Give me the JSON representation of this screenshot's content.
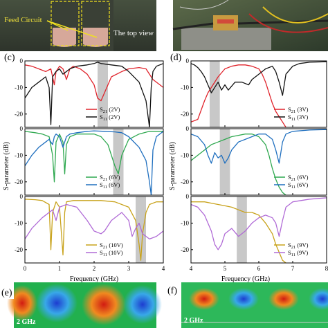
{
  "photos": {
    "left_feed_label": "Feed Circuit",
    "left_top_view_label": "The top view"
  },
  "panels": {
    "c": {
      "label": "(c)",
      "xlabel": "Frequency (GHz)",
      "ylabel": "S-parameter (dB)",
      "xticks": [
        "0",
        "1",
        "2",
        "3",
        "4"
      ],
      "yticks": [
        "0",
        "-10",
        "-20"
      ],
      "subplots": [
        {
          "legend": [
            {
              "name": "S21 (2V)",
              "color": "#e0232b"
            },
            {
              "name": "S11 (2V)",
              "color": "#111111"
            }
          ]
        },
        {
          "legend": [
            {
              "name": "S21 (6V)",
              "color": "#2ea84f"
            },
            {
              "name": "S11 (6V)",
              "color": "#1f6fbf"
            }
          ]
        },
        {
          "legend": [
            {
              "name": "S21 (10V)",
              "color": "#c8a21a"
            },
            {
              "name": "S11 (10V)",
              "color": "#b06ad6"
            }
          ]
        }
      ]
    },
    "d": {
      "label": "(d)",
      "xlabel": "Frequency (GHz)",
      "xticks": [
        "4",
        "5",
        "6",
        "7",
        "8"
      ],
      "yticks": [
        "0",
        "-10",
        "-20"
      ],
      "subplots": [
        {
          "legend": [
            {
              "name": "S21 (3V)",
              "color": "#e0232b"
            },
            {
              "name": "S11 (3V)",
              "color": "#111111"
            }
          ]
        },
        {
          "legend": [
            {
              "name": "S21 (6V)",
              "color": "#2ea84f"
            },
            {
              "name": "S11 (6V)",
              "color": "#1f6fbf"
            }
          ]
        },
        {
          "legend": [
            {
              "name": "S21 (9V)",
              "color": "#c8a21a"
            },
            {
              "name": "S11 (9V)",
              "color": "#b06ad6"
            }
          ]
        }
      ]
    },
    "e": {
      "label": "(e)",
      "freq_label": "2 GHz"
    },
    "f": {
      "label": "(f)",
      "freq_label": "2 GHz"
    }
  },
  "chart_data": [
    {
      "type": "line",
      "panel": "c-top",
      "xlim": [
        0,
        4
      ],
      "ylim": [
        -25,
        0
      ],
      "highlight_band": [
        2.1,
        2.4
      ],
      "series": [
        {
          "name": "S21 (2V)",
          "color": "#e0232b",
          "x": [
            0,
            0.2,
            0.4,
            0.6,
            0.75,
            0.85,
            0.9,
            1.0,
            1.1,
            1.2,
            1.3,
            1.4,
            1.6,
            1.8,
            2.0,
            2.1,
            2.2,
            2.3,
            2.5,
            2.8,
            3.0,
            3.3,
            3.5,
            3.7,
            4.0
          ],
          "y": [
            -1.5,
            -2,
            -3,
            -4,
            -3,
            -9,
            -4,
            -2,
            -3,
            -7,
            -3,
            -2,
            -3,
            -5,
            -9,
            -14,
            -15,
            -12,
            -6,
            -4,
            -3,
            -2.5,
            -3,
            -7,
            -10
          ]
        },
        {
          "name": "S11 (2V)",
          "color": "#111111",
          "x": [
            0,
            0.2,
            0.4,
            0.5,
            0.6,
            0.7,
            0.75,
            0.8,
            0.9,
            1.0,
            1.1,
            1.3,
            1.5,
            1.8,
            2.0,
            2.1,
            2.2,
            2.5,
            2.8,
            3.0,
            3.3,
            3.5,
            3.6,
            3.65,
            3.7,
            3.8,
            4.0
          ],
          "y": [
            -14,
            -10,
            -8,
            -7,
            -6,
            -10,
            -24,
            -6,
            -4,
            -3,
            -5,
            -3,
            -2,
            -1.5,
            -1,
            -0.5,
            -1,
            -1.5,
            -2,
            -4,
            -8,
            -15,
            -25,
            -10,
            -4,
            -2,
            -1
          ]
        }
      ]
    },
    {
      "type": "line",
      "panel": "c-middle",
      "xlim": [
        0,
        4
      ],
      "ylim": [
        -25,
        0
      ],
      "highlight_band": [
        2.55,
        2.85
      ],
      "series": [
        {
          "name": "S21 (6V)",
          "color": "#2ea84f",
          "x": [
            0,
            0.3,
            0.5,
            0.7,
            0.8,
            0.85,
            0.9,
            1.0,
            1.1,
            1.15,
            1.2,
            1.3,
            1.5,
            1.8,
            2.0,
            2.2,
            2.4,
            2.6,
            2.7,
            2.8,
            3.0,
            3.3,
            3.6,
            4.0
          ],
          "y": [
            -1,
            -1.5,
            -2,
            -3,
            -10,
            -20,
            -5,
            -2,
            -5,
            -17,
            -6,
            -3,
            -2,
            -2,
            -2,
            -3,
            -6,
            -14,
            -17,
            -10,
            -4,
            -2,
            -1,
            -1
          ]
        },
        {
          "name": "S11 (6V)",
          "color": "#1f6fbf",
          "x": [
            0,
            0.2,
            0.4,
            0.6,
            0.7,
            0.8,
            0.85,
            0.9,
            1.0,
            1.1,
            1.2,
            1.3,
            1.5,
            1.8,
            2.0,
            2.3,
            2.6,
            2.8,
            3.0,
            3.3,
            3.5,
            3.6,
            3.65,
            3.7,
            3.8,
            4.0
          ],
          "y": [
            -14,
            -10,
            -7,
            -5,
            -4,
            -6,
            -3,
            -2,
            -3,
            -7,
            -3,
            -2,
            -1.5,
            -1,
            -0.8,
            -1,
            -1.2,
            -1.5,
            -3,
            -7,
            -12,
            -20,
            -25,
            -8,
            -3,
            -1
          ]
        }
      ]
    },
    {
      "type": "line",
      "panel": "c-bottom",
      "xlim": [
        0,
        4
      ],
      "ylim": [
        -25,
        0
      ],
      "highlight_band": [
        3.2,
        3.5
      ],
      "series": [
        {
          "name": "S21 (10V)",
          "color": "#c8a21a",
          "x": [
            0,
            0.3,
            0.5,
            0.7,
            0.75,
            0.8,
            0.9,
            1.0,
            1.1,
            1.15,
            1.2,
            1.4,
            1.8,
            2.2,
            2.6,
            3.0,
            3.2,
            3.3,
            3.35,
            3.4,
            3.5,
            3.6,
            3.8,
            4.0
          ],
          "y": [
            -1,
            -1.2,
            -1.5,
            -3,
            -20,
            -6,
            -2,
            -4,
            -22,
            -6,
            -2,
            -1.5,
            -1.5,
            -1.5,
            -2,
            -4,
            -9,
            -18,
            -24,
            -14,
            -6,
            -3,
            -2,
            -2
          ]
        },
        {
          "name": "S11 (10V)",
          "color": "#b06ad6",
          "x": [
            0,
            0.2,
            0.5,
            0.7,
            0.8,
            0.9,
            1.0,
            1.2,
            1.5,
            1.8,
            2.0,
            2.2,
            2.3,
            2.5,
            2.8,
            3.0,
            3.1,
            3.2,
            3.3,
            3.4,
            3.6,
            3.8,
            4.0
          ],
          "y": [
            -16,
            -12,
            -8,
            -6,
            -5,
            -9,
            -4,
            -3,
            -4,
            -9,
            -13,
            -14,
            -13,
            -9,
            -6,
            -9,
            -15,
            -12,
            -10,
            -14,
            -16,
            -15,
            -13
          ]
        }
      ]
    },
    {
      "type": "line",
      "panel": "d-top",
      "xlim": [
        4,
        8
      ],
      "ylim": [
        -25,
        0
      ],
      "highlight_band": [
        4.55,
        4.85
      ],
      "series": [
        {
          "name": "S21 (3V)",
          "color": "#e0232b",
          "x": [
            4,
            4.2,
            4.4,
            4.5,
            4.6,
            4.8,
            5.0,
            5.2,
            5.4,
            5.6,
            5.8,
            6.0,
            6.1,
            6.2,
            6.3,
            6.4,
            6.5,
            6.6,
            6.7,
            6.8
          ],
          "y": [
            -23,
            -22,
            -15,
            -12,
            -10,
            -6,
            -3,
            -2,
            -1.5,
            -1.5,
            -2,
            -3,
            -5,
            -8,
            -12,
            -16,
            -19,
            -21,
            -23,
            -25
          ]
        },
        {
          "name": "S11 (3V)",
          "color": "#111111",
          "x": [
            4,
            4.1,
            4.2,
            4.3,
            4.4,
            4.5,
            4.6,
            4.8,
            4.9,
            5.0,
            5.1,
            5.3,
            5.5,
            5.7,
            5.8,
            6.0,
            6.2,
            6.4,
            6.5,
            6.6,
            6.7,
            6.8,
            7.0,
            7.2,
            7.5,
            8.0
          ],
          "y": [
            -1,
            -1.5,
            -2.5,
            -4,
            -6,
            -9,
            -12,
            -8,
            -11,
            -9,
            -11,
            -8,
            -8,
            -9,
            -7,
            -5,
            -3,
            -2,
            -4,
            -8,
            -13,
            -5,
            -2,
            -1,
            -0.5,
            -0.3
          ]
        }
      ]
    },
    {
      "type": "line",
      "panel": "d-middle",
      "xlim": [
        4,
        8
      ],
      "ylim": [
        -25,
        0
      ],
      "highlight_band": [
        4.85,
        5.15
      ],
      "series": [
        {
          "name": "S21 (6V)",
          "color": "#2ea84f",
          "x": [
            4,
            4.2,
            4.4,
            4.6,
            4.8,
            5.0,
            5.2,
            5.4,
            5.6,
            5.8,
            6.0,
            6.2,
            6.3,
            6.4,
            6.5,
            6.6,
            6.7,
            6.8
          ],
          "y": [
            -12,
            -10,
            -8,
            -6,
            -5,
            -4,
            -3,
            -2.5,
            -2,
            -2,
            -3,
            -6,
            -10,
            -15,
            -19,
            -22,
            -24,
            -25
          ]
        },
        {
          "name": "S11 (6V)",
          "color": "#1f6fbf",
          "x": [
            4,
            4.2,
            4.4,
            4.5,
            4.6,
            4.7,
            4.8,
            4.9,
            5.0,
            5.1,
            5.2,
            5.4,
            5.6,
            5.8,
            6.0,
            6.2,
            6.4,
            6.5,
            6.6,
            6.7,
            6.8,
            7.0,
            7.5,
            8.0
          ],
          "y": [
            -2,
            -3,
            -6,
            -10,
            -13,
            -9,
            -11,
            -10,
            -13,
            -11,
            -8,
            -5,
            -4,
            -3,
            -2,
            -2,
            -4,
            -8,
            -13,
            -5,
            -2,
            -1,
            -0.5,
            -0.3
          ]
        }
      ]
    },
    {
      "type": "line",
      "panel": "d-bottom",
      "xlim": [
        4,
        8
      ],
      "ylim": [
        -25,
        0
      ],
      "highlight_band": [
        5.35,
        5.65
      ],
      "series": [
        {
          "name": "S21 (9V)",
          "color": "#c8a21a",
          "x": [
            4,
            4.2,
            4.4,
            4.6,
            4.8,
            5.0,
            5.2,
            5.4,
            5.6,
            5.8,
            6.0,
            6.2,
            6.4,
            6.5,
            6.6,
            6.7,
            6.8
          ],
          "y": [
            -2,
            -2,
            -2,
            -2.5,
            -3,
            -3.5,
            -4,
            -5,
            -6,
            -6,
            -7,
            -10,
            -14,
            -18,
            -21,
            -24,
            -25
          ]
        },
        {
          "name": "S11 (9V)",
          "color": "#b06ad6",
          "x": [
            4,
            4.2,
            4.4,
            4.6,
            4.7,
            4.8,
            4.9,
            5.0,
            5.2,
            5.4,
            5.6,
            5.8,
            6.0,
            6.2,
            6.4,
            6.5,
            6.6,
            6.7,
            6.8,
            7.0,
            7.5,
            8.0
          ],
          "y": [
            -3,
            -4,
            -7,
            -13,
            -18,
            -20,
            -18,
            -14,
            -12,
            -15,
            -13,
            -10,
            -8,
            -7,
            -8,
            -10,
            -15,
            -9,
            -4,
            -2,
            -1,
            -0.5
          ]
        }
      ]
    }
  ]
}
